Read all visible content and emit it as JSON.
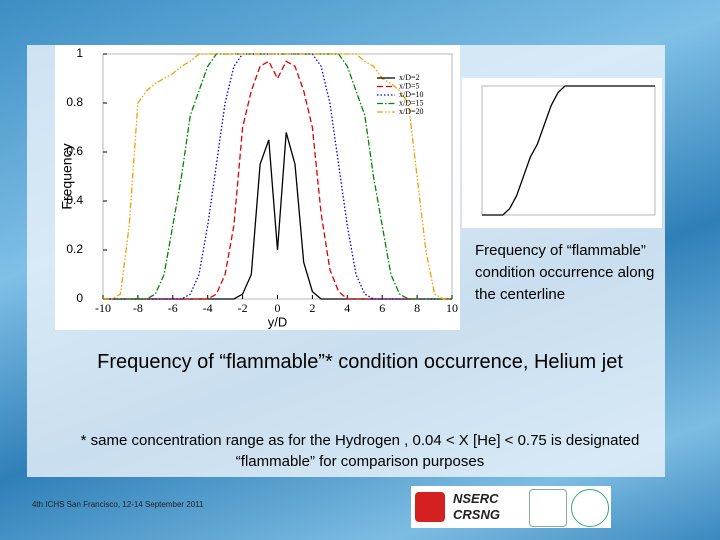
{
  "chart_data": [
    {
      "type": "line",
      "x_label": "y/D",
      "y_label": "Frequency",
      "x": [
        -10,
        -9.5,
        -9,
        -8.5,
        -8,
        -7.5,
        -7,
        -6.5,
        -6,
        -5.5,
        -5,
        -4.5,
        -4,
        -3.5,
        -3,
        -2.5,
        -2,
        -1.5,
        -1,
        -0.5,
        0,
        0.5,
        1,
        1.5,
        2,
        2.5,
        3,
        3.5,
        4,
        4.5,
        5,
        5.5,
        6,
        6.5,
        7,
        7.5,
        8,
        8.5,
        9,
        9.5,
        10
      ],
      "series": [
        {
          "name": "x/D=2",
          "color": "#000000",
          "style": "solid",
          "values": [
            0,
            0,
            0,
            0,
            0,
            0,
            0,
            0,
            0,
            0,
            0,
            0,
            0,
            0,
            0,
            0,
            0.02,
            0.1,
            0.55,
            0.65,
            0.2,
            0.68,
            0.55,
            0.15,
            0.03,
            0,
            0,
            0,
            0,
            0,
            0,
            0,
            0,
            0,
            0,
            0,
            0,
            0,
            0,
            0,
            0
          ]
        },
        {
          "name": "x/D=5",
          "color": "#e00000",
          "style": "dashed",
          "values": [
            0,
            0,
            0,
            0,
            0,
            0,
            0,
            0,
            0,
            0,
            0,
            0,
            0,
            0.02,
            0.1,
            0.3,
            0.7,
            0.85,
            0.95,
            0.97,
            0.9,
            0.97,
            0.95,
            0.85,
            0.7,
            0.35,
            0.12,
            0.03,
            0,
            0,
            0,
            0,
            0,
            0,
            0,
            0,
            0,
            0,
            0,
            0,
            0
          ]
        },
        {
          "name": "x/D=10",
          "color": "#0000ee",
          "style": "dotted",
          "values": [
            0,
            0,
            0,
            0,
            0,
            0,
            0,
            0,
            0,
            0,
            0.02,
            0.1,
            0.3,
            0.55,
            0.8,
            0.95,
            1,
            1,
            1,
            1,
            1,
            1,
            1,
            1,
            1,
            0.95,
            0.8,
            0.55,
            0.3,
            0.1,
            0.02,
            0,
            0,
            0,
            0,
            0,
            0,
            0,
            0,
            0,
            0
          ]
        },
        {
          "name": "x/D=15",
          "color": "#008800",
          "style": "dashdot",
          "values": [
            0,
            0,
            0,
            0,
            0,
            0,
            0.02,
            0.1,
            0.3,
            0.5,
            0.75,
            0.85,
            0.95,
            1,
            1,
            1,
            1,
            1,
            1,
            1,
            1,
            1,
            1,
            1,
            1,
            1,
            1,
            1,
            0.95,
            0.85,
            0.75,
            0.5,
            0.3,
            0.1,
            0.02,
            0,
            0,
            0,
            0,
            0,
            0
          ]
        },
        {
          "name": "x/D=20",
          "color": "#f0a000",
          "style": "dashdotdot",
          "values": [
            0,
            0,
            0.02,
            0.3,
            0.8,
            0.85,
            0.88,
            0.9,
            0.92,
            0.95,
            0.97,
            1,
            1,
            1,
            1,
            1,
            1,
            1,
            1,
            1,
            1,
            1,
            1,
            1,
            1,
            1,
            1,
            1,
            1,
            1,
            0.97,
            0.95,
            0.9,
            0.88,
            0.85,
            0.8,
            0.5,
            0.2,
            0.02,
            0,
            0
          ]
        }
      ],
      "xlim": [
        -10,
        10
      ],
      "xticks": [
        -10,
        -8,
        -6,
        -4,
        -2,
        0,
        2,
        4,
        6,
        8,
        10
      ],
      "ylim": [
        0,
        1
      ],
      "yticks": [
        0,
        0.2,
        0.4,
        0.6,
        0.8,
        1
      ],
      "legend": "upper right"
    },
    {
      "type": "line",
      "x": [
        0,
        3,
        4,
        5,
        6,
        7,
        8,
        9,
        10,
        11,
        12,
        14,
        16,
        20,
        25
      ],
      "values": [
        0,
        0,
        0.05,
        0.15,
        0.3,
        0.45,
        0.55,
        0.7,
        0.85,
        0.95,
        1,
        1,
        1,
        1,
        1
      ],
      "color": "#000000",
      "xlim": [
        0,
        25
      ],
      "ylim": [
        0,
        1
      ]
    }
  ],
  "caption": "Frequency of “flammable” condition occurrence along the centerline",
  "title": "Frequency of “flammable”* condition occurrence, Helium jet",
  "footnote": "* same concentration range as for the Hydrogen , 0.04 < X [He] < 0.75 is designated “flammable” for comparison purposes",
  "footer": "4th ICHS San Francisco, 12-14 September 2011",
  "logos": {
    "nserc": "NSERC",
    "crsng": "CRSNG"
  }
}
